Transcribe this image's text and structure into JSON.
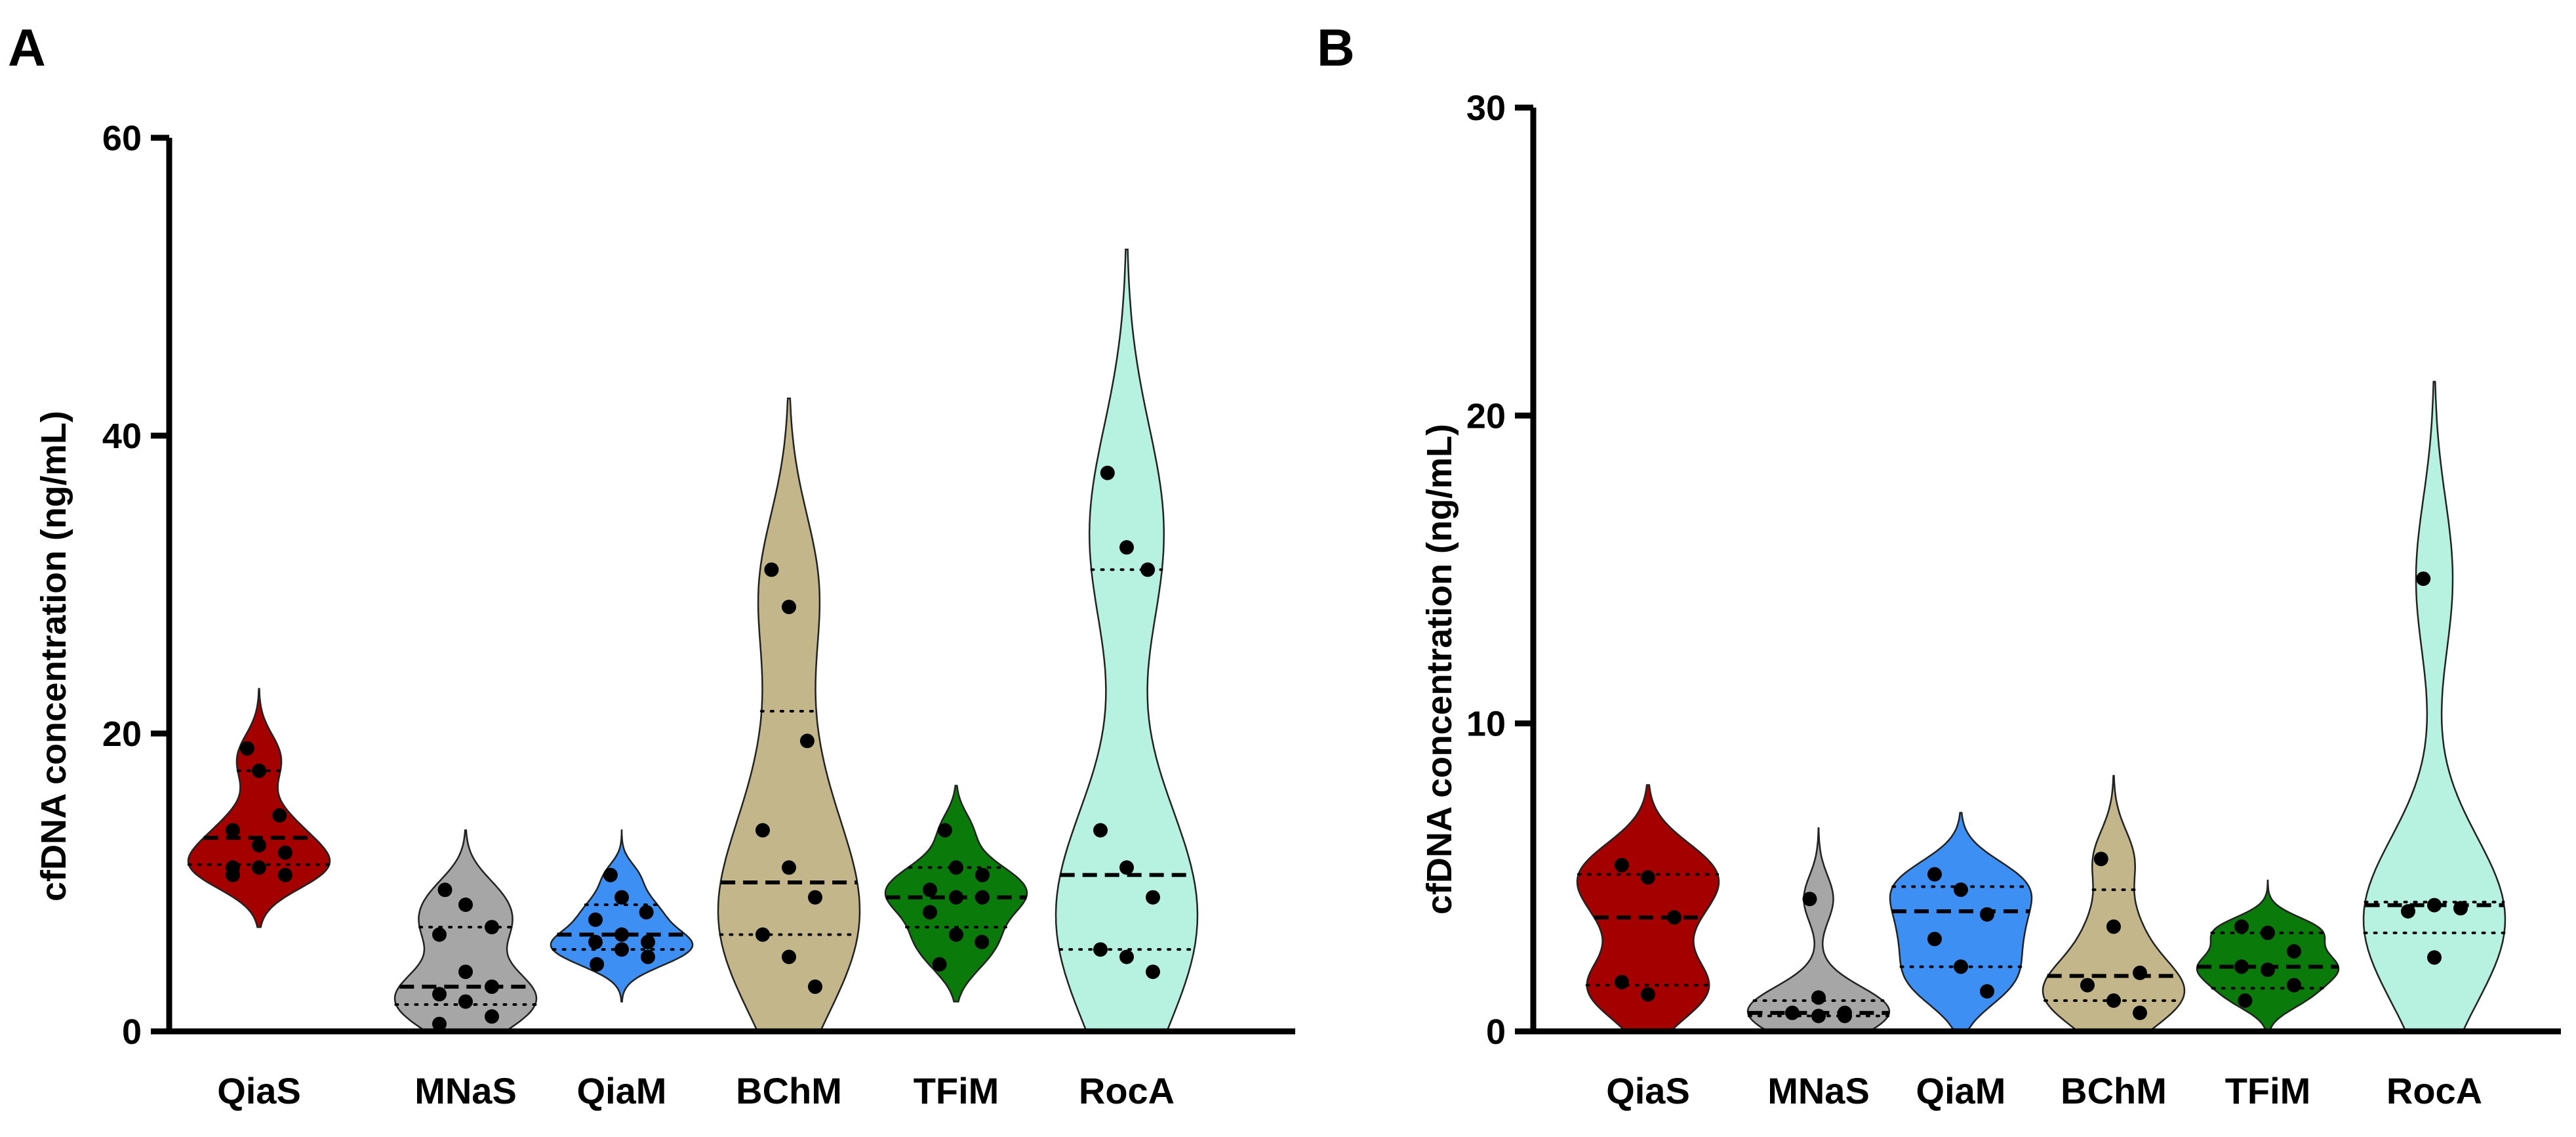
{
  "chart_data": [
    {
      "type": "violin",
      "panel": "A",
      "ylabel": "cfDNA concentration (ng/mL)",
      "ylim": [
        0,
        60
      ],
      "yticks": [
        "0",
        "20",
        "40",
        "60"
      ],
      "categories": [
        "QiaS",
        "MNaS",
        "QiaM",
        "BChM",
        "TFiM",
        "RocA"
      ],
      "groups": [
        {
          "name": "QiaS",
          "color": "#a50000",
          "min": 7,
          "max": 23,
          "median": 13,
          "q1": 11.2,
          "q3": 17.5,
          "points": [
            19,
            17.5,
            14.5,
            13.5,
            12.5,
            12,
            11,
            11,
            10.5,
            10.5
          ]
        },
        {
          "name": "MNaS",
          "color": "#a6a6a6",
          "min": 0,
          "max": 13.5,
          "median": 3,
          "q1": 1.8,
          "q3": 7,
          "points": [
            9.5,
            8.5,
            7,
            6.5,
            4,
            3,
            2.5,
            2,
            1,
            0.5
          ]
        },
        {
          "name": "QiaM",
          "color": "#3d8ff3",
          "min": 2,
          "max": 13.5,
          "median": 6.5,
          "q1": 5.5,
          "q3": 8.5,
          "points": [
            10.5,
            9,
            8,
            7.5,
            6.5,
            6,
            6,
            5.5,
            5,
            4.5
          ]
        },
        {
          "name": "BChM",
          "color": "#c3b68a",
          "min": 0,
          "max": 42.5,
          "median": 10,
          "q1": 6.5,
          "q3": 21.5,
          "points": [
            31,
            28.5,
            19.5,
            13.5,
            11,
            9,
            6.5,
            5,
            3
          ]
        },
        {
          "name": "TFiM",
          "color": "#0a7a0a",
          "min": 2,
          "max": 16.5,
          "median": 9,
          "q1": 7,
          "q3": 11,
          "points": [
            13.5,
            11,
            10.5,
            9.5,
            9,
            9,
            8,
            6.5,
            6,
            4.5
          ]
        },
        {
          "name": "RocA",
          "color": "#b6f2df",
          "min": 0,
          "max": 52.5,
          "median": 10.5,
          "q1": 5.5,
          "q3": 31,
          "points": [
            37.5,
            32.5,
            31,
            13.5,
            11,
            9,
            5.5,
            5,
            4
          ]
        }
      ]
    },
    {
      "type": "violin",
      "panel": "B",
      "ylabel": "cfDNA concentration (ng/mL)",
      "ylim": [
        0,
        30
      ],
      "yticks": [
        "0",
        "10",
        "20",
        "30"
      ],
      "categories": [
        "QiaS",
        "MNaS",
        "QiaM",
        "BChM",
        "TFiM",
        "RocA"
      ],
      "groups": [
        {
          "name": "QiaS",
          "color": "#a50000",
          "min": 0,
          "max": 8,
          "median": 3.7,
          "q1": 1.5,
          "q3": 5.1,
          "points": [
            5.4,
            5,
            3.7,
            1.6,
            1.2
          ]
        },
        {
          "name": "MNaS",
          "color": "#a6a6a6",
          "min": 0,
          "max": 6.6,
          "median": 0.6,
          "q1": 0.5,
          "q3": 1.0,
          "points": [
            4.3,
            1.1,
            0.6,
            0.6,
            0.5,
            0.5
          ]
        },
        {
          "name": "QiaM",
          "color": "#3d8ff3",
          "min": 0,
          "max": 7.1,
          "median": 3.9,
          "q1": 2.1,
          "q3": 4.7,
          "points": [
            5.1,
            4.6,
            3.8,
            3.0,
            2.1,
            1.3
          ]
        },
        {
          "name": "BChM",
          "color": "#c3b68a",
          "min": 0,
          "max": 8.3,
          "median": 1.8,
          "q1": 1.0,
          "q3": 4.6,
          "points": [
            5.6,
            3.4,
            1.9,
            1.5,
            1.0,
            0.6
          ]
        },
        {
          "name": "TFiM",
          "color": "#0a7a0a",
          "min": 0,
          "max": 4.9,
          "median": 2.1,
          "q1": 1.4,
          "q3": 3.2,
          "points": [
            3.4,
            3.2,
            2.6,
            2.1,
            2.0,
            1.5,
            1.0
          ]
        },
        {
          "name": "RocA",
          "color": "#b6f2df",
          "min": 0,
          "max": 21.1,
          "median": 4.1,
          "q1": 3.2,
          "q3": 4.2,
          "points": [
            14.7,
            4.1,
            4.0,
            3.9,
            2.4
          ]
        }
      ]
    }
  ]
}
